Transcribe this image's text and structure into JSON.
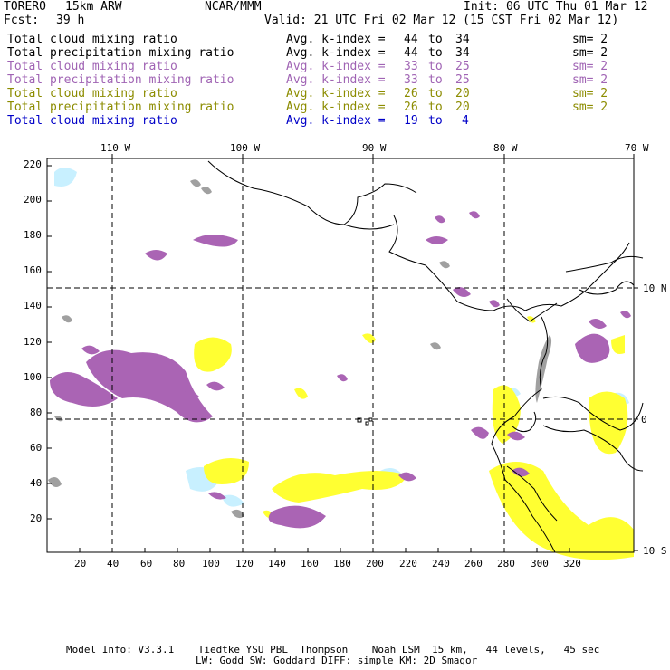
{
  "header": {
    "model": "TORERO",
    "resolution": "15km ARW",
    "org": "NCAR/MMM",
    "init": "Init: 06 UTC Thu 01 Mar 12",
    "fcst_label": "Fcst:",
    "fcst_value": "39 h",
    "valid": "Valid: 21 UTC Fri 02 Mar 12 (15 CST Fri 02 Mar 12)"
  },
  "legend": [
    {
      "field": "Total cloud mixing ratio",
      "avg": "Avg. k-index =",
      "from": "44",
      "to_word": "to",
      "to": "34",
      "sm": "sm= 2",
      "color": "#000000"
    },
    {
      "field": "Total precipitation mixing ratio",
      "avg": "Avg. k-index =",
      "from": "44",
      "to_word": "to",
      "to": "34",
      "sm": "sm= 2",
      "color": "#000000"
    },
    {
      "field": "Total cloud mixing ratio",
      "avg": "Avg. k-index =",
      "from": "33",
      "to_word": "to",
      "to": "25",
      "sm": "sm= 2",
      "color": "#a064b4"
    },
    {
      "field": "Total precipitation mixing ratio",
      "avg": "Avg. k-index =",
      "from": "33",
      "to_word": "to",
      "to": "25",
      "sm": "sm= 2",
      "color": "#a064b4"
    },
    {
      "field": "Total cloud mixing ratio",
      "avg": "Avg. k-index =",
      "from": "26",
      "to_word": "to",
      "to": "20",
      "sm": "sm= 2",
      "color": "#8c8c00"
    },
    {
      "field": "Total precipitation mixing ratio",
      "avg": "Avg. k-index =",
      "from": "26",
      "to_word": "to",
      "to": "20",
      "sm": "sm= 2",
      "color": "#8c8c00"
    },
    {
      "field": "Total cloud mixing ratio",
      "avg": "Avg. k-index =",
      "from": "19",
      "to_word": "to",
      "to": "4",
      "sm": "",
      "color": "#0000c8"
    }
  ],
  "map": {
    "top_lon_labels": [
      "110 W",
      "100 W",
      "90 W",
      "80 W",
      "70 W"
    ],
    "right_lat_labels": [
      "10 N",
      "0",
      "10 S"
    ],
    "y_ticks": [
      "220",
      "200",
      "180",
      "160",
      "140",
      "120",
      "100",
      "80",
      "60",
      "40",
      "20"
    ],
    "x_ticks": [
      "20",
      "40",
      "60",
      "80",
      "100",
      "120",
      "140",
      "160",
      "180",
      "200",
      "220",
      "240",
      "260",
      "280",
      "300",
      "320"
    ],
    "grid_range": {
      "x": [
        0,
        335
      ],
      "y": [
        0,
        225
      ]
    },
    "colors": {
      "cloud_high": "#a0a0a0",
      "precip_mid": "#aa64b4",
      "cloud_low": "#ffff32",
      "precip_low": "#c8f0ff",
      "coast": "#000000",
      "grid": "#000000"
    }
  },
  "footer": {
    "line1": "Model Info: V3.3.1    Tiedtke YSU PBL  Thompson    Noah LSM  15 km,   44 levels,   45 sec",
    "line2": "LW: Godd SW: Goddard DIFF: simple KM: 2D Smagor"
  }
}
